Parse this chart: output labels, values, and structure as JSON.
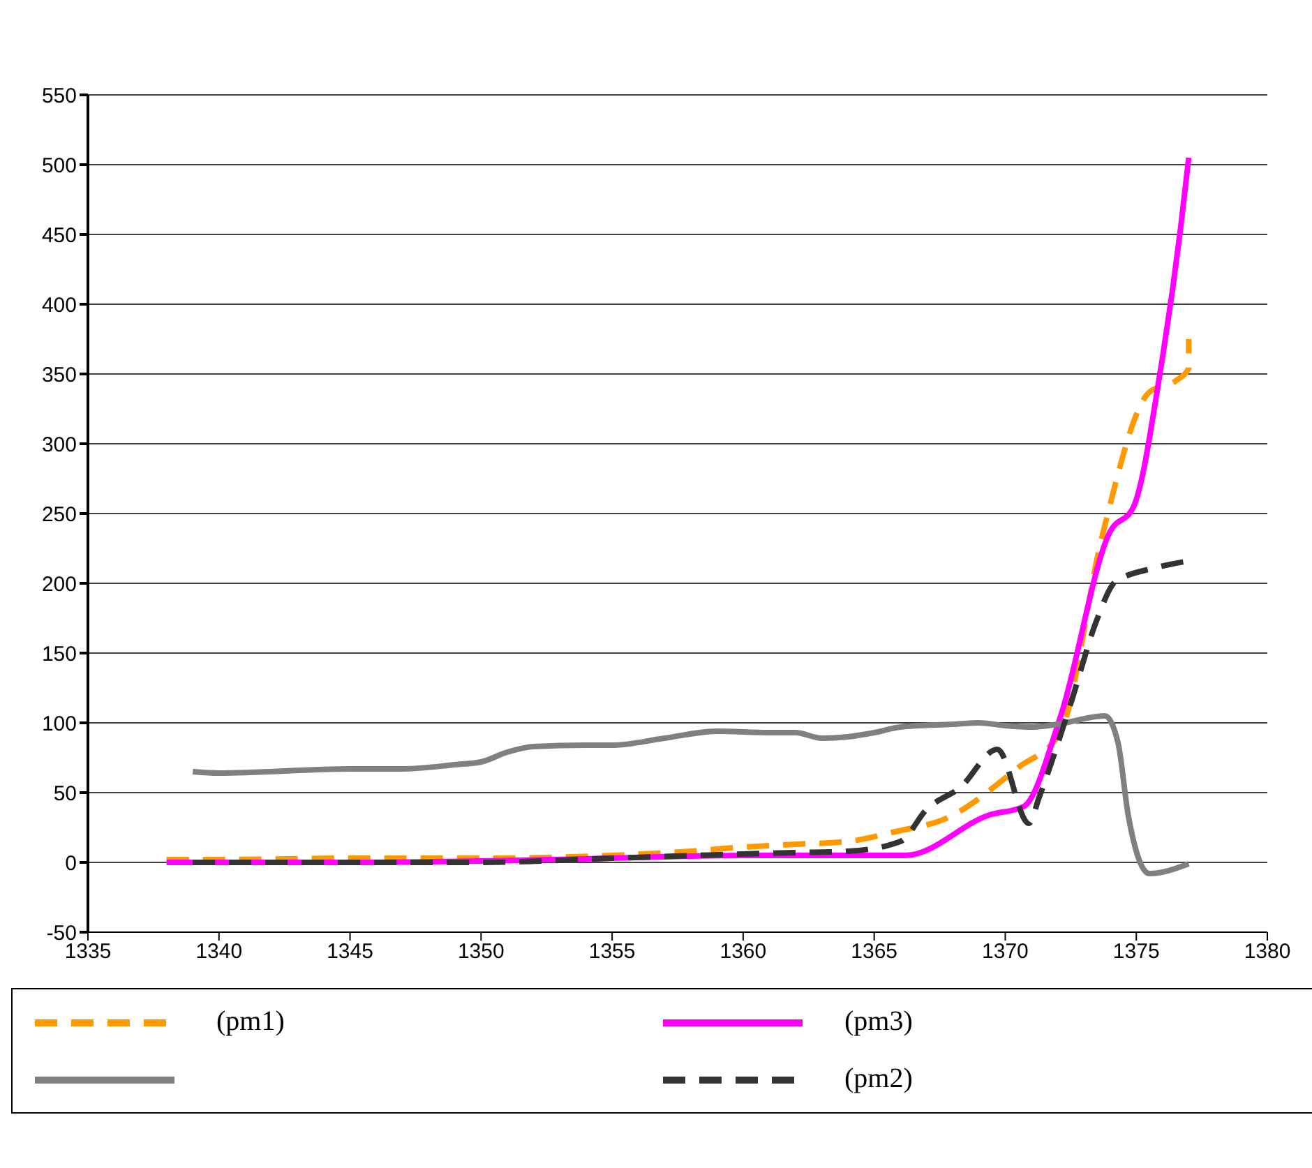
{
  "chart_data": {
    "type": "line",
    "xlim": [
      1335,
      1380
    ],
    "xticks": [
      1335,
      1340,
      1345,
      1350,
      1355,
      1360,
      1365,
      1370,
      1375,
      1380
    ],
    "ylim": [
      -50,
      550
    ],
    "yticks": [
      -50,
      0,
      50,
      100,
      150,
      200,
      250,
      300,
      350,
      400,
      450,
      500,
      550
    ],
    "grid": "y",
    "legend": "bottom",
    "marker": "none",
    "series": [
      {
        "name": "(pm1)",
        "color": "#ff9900",
        "line_style": "dashed",
        "x": [
          1338,
          1340,
          1345,
          1350,
          1355,
          1358,
          1360,
          1362,
          1364,
          1365.8,
          1367.8,
          1370.5,
          1372.1,
          1373.7,
          1375.5,
          1376.5,
          1377,
          1377
        ],
        "values": [
          2,
          2,
          3,
          3,
          5,
          8,
          11,
          13,
          15,
          22,
          32,
          68,
          93,
          234,
          337,
          345,
          354,
          375
        ]
      },
      {
        "name": "(pm3)",
        "color": "#ff00ff",
        "line_style": "solid",
        "x": [
          1338,
          1340,
          1345,
          1350,
          1355,
          1360,
          1365,
          1366.2,
          1369.4,
          1370.7,
          1372.1,
          1374,
          1374.9,
          1375.9,
          1376.7,
          1377
        ],
        "values": [
          0,
          0,
          0,
          1,
          3,
          5,
          5,
          5,
          34,
          40,
          104,
          237,
          255,
          350,
          456,
          505
        ]
      },
      {
        "color": "#808080",
        "line_style": "solid",
        "x": [
          1339,
          1340,
          1345,
          1347,
          1349,
          1350,
          1351,
          1352,
          1354,
          1355,
          1357,
          1359,
          1361,
          1362,
          1363,
          1364,
          1365,
          1366,
          1368,
          1369,
          1370,
          1371,
          1372,
          1373.8,
          1374.3,
          1374.7,
          1375.5,
          1377
        ],
        "values": [
          65,
          64,
          67,
          67,
          70,
          72,
          79,
          83,
          84,
          84,
          89,
          94,
          93,
          93,
          89,
          90,
          93,
          97,
          99,
          100,
          98,
          97,
          99,
          105,
          86,
          33,
          -8,
          -1
        ]
      },
      {
        "name": "(pm2)",
        "color": "#333333",
        "line_style": "dashed",
        "x": [
          1339,
          1345,
          1350,
          1355,
          1360,
          1362,
          1364,
          1366,
          1367,
          1368.3,
          1369.7,
          1370.9,
          1371.3,
          1372.5,
          1373.5,
          1374.2,
          1375.7,
          1377
        ],
        "values": [
          0,
          0,
          0,
          3,
          6,
          7,
          8,
          15,
          38,
          54,
          81,
          28,
          47,
          114,
          174,
          201,
          211,
          216
        ]
      }
    ]
  }
}
